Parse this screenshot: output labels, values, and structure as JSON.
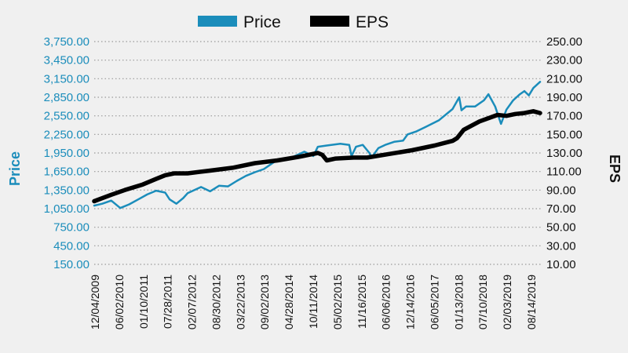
{
  "chart_data": {
    "type": "line",
    "legend": {
      "position": "top",
      "entries": [
        "Price",
        "EPS"
      ]
    },
    "y_left": {
      "label": "Price",
      "min": 150,
      "max": 3750,
      "step": 300,
      "ticks": [
        "150.00",
        "450.00",
        "750.00",
        "1,050.00",
        "1,350.00",
        "1,650.00",
        "1,950.00",
        "2,250.00",
        "2,550.00",
        "2,850.00",
        "3,150.00",
        "3,450.00",
        "3,750.00"
      ]
    },
    "y_right": {
      "label": "EPS",
      "min": 10,
      "max": 250,
      "step": 20,
      "ticks": [
        "10.00",
        "30.00",
        "50.00",
        "70.00",
        "90.00",
        "110.00",
        "130.00",
        "150.00",
        "170.00",
        "190.00",
        "210.00",
        "230.00",
        "250.00"
      ]
    },
    "x_ticks": [
      "12/04/2009",
      "06/02/2010",
      "01/10/2011",
      "07/28/2011",
      "02/07/2012",
      "08/30/2012",
      "03/22/2013",
      "09/02/2013",
      "04/28/2014",
      "10/11/2014",
      "05/02/2015",
      "11/16/2015",
      "06/06/2016",
      "12/14/2016",
      "06/05/2017",
      "01/13/2018",
      "07/10/2018",
      "02/03/2019",
      "08/14/2019"
    ],
    "x_range_years": [
      2009.92,
      2019.85
    ],
    "grid": "horizontal dotted",
    "series": [
      {
        "name": "Price",
        "axis": "left",
        "color": "#1b8dbb",
        "x": [
          2009.92,
          2010.1,
          2010.3,
          2010.5,
          2010.7,
          2010.9,
          2011.1,
          2011.3,
          2011.5,
          2011.6,
          2011.75,
          2011.9,
          2012.0,
          2012.3,
          2012.5,
          2012.7,
          2012.9,
          2013.1,
          2013.3,
          2013.5,
          2013.7,
          2014.0,
          2014.3,
          2014.6,
          2014.8,
          2014.9,
          2015.1,
          2015.4,
          2015.6,
          2015.65,
          2015.75,
          2015.9,
          2016.05,
          2016.1,
          2016.25,
          2016.4,
          2016.6,
          2016.8,
          2016.9,
          2017.1,
          2017.3,
          2017.6,
          2017.9,
          2018.05,
          2018.1,
          2018.2,
          2018.4,
          2018.6,
          2018.7,
          2018.85,
          2018.98,
          2019.1,
          2019.25,
          2019.4,
          2019.5,
          2019.6,
          2019.7,
          2019.85
        ],
        "y": [
          1100,
          1130,
          1180,
          1060,
          1120,
          1200,
          1280,
          1340,
          1310,
          1200,
          1130,
          1220,
          1300,
          1400,
          1330,
          1420,
          1410,
          1500,
          1580,
          1640,
          1690,
          1840,
          1870,
          1970,
          1900,
          2050,
          2070,
          2100,
          2080,
          1900,
          2050,
          2080,
          1950,
          1880,
          2030,
          2080,
          2130,
          2150,
          2250,
          2300,
          2370,
          2480,
          2660,
          2850,
          2640,
          2700,
          2700,
          2800,
          2900,
          2700,
          2420,
          2650,
          2800,
          2900,
          2950,
          2880,
          3000,
          3100
        ]
      },
      {
        "name": "EPS",
        "axis": "right",
        "color": "#000000",
        "x": [
          2009.92,
          2010.3,
          2010.6,
          2011.0,
          2011.3,
          2011.5,
          2011.7,
          2012.0,
          2012.5,
          2013.0,
          2013.5,
          2014.0,
          2014.5,
          2014.9,
          2015.0,
          2015.1,
          2015.3,
          2015.7,
          2016.0,
          2016.5,
          2017.0,
          2017.5,
          2017.9,
          2018.0,
          2018.15,
          2018.5,
          2018.9,
          2019.1,
          2019.3,
          2019.5,
          2019.7,
          2019.85
        ],
        "y": [
          78,
          85,
          90,
          96,
          102,
          106,
          108,
          108,
          111,
          114,
          119,
          122,
          126,
          130,
          128,
          122,
          124,
          125,
          125,
          129,
          133,
          138,
          143,
          146,
          155,
          164,
          171,
          170,
          172,
          173,
          175,
          173
        ]
      }
    ]
  }
}
